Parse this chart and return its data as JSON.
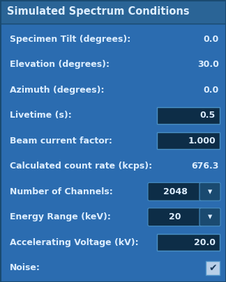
{
  "title": "Simulated Spectrum Conditions",
  "title_bg": "#2a6496",
  "body_bg": "#2b6cb0",
  "rows": [
    {
      "label": "Specimen Tilt (degrees):",
      "value": "0.0",
      "type": "plain"
    },
    {
      "label": "Elevation (degrees):",
      "value": "30.0",
      "type": "plain"
    },
    {
      "label": "Azimuth (degrees):",
      "value": "0.0",
      "type": "plain"
    },
    {
      "label": "Livetime (s):",
      "value": "0.5",
      "type": "input"
    },
    {
      "label": "Beam current factor:",
      "value": "1.000",
      "type": "input"
    },
    {
      "label": "Calculated count rate (kcps):",
      "value": "676.3",
      "type": "plain"
    },
    {
      "label": "Number of Channels:",
      "value": "2048",
      "type": "dropdown"
    },
    {
      "label": "Energy Range (keV):",
      "value": "20",
      "type": "dropdown"
    },
    {
      "label": "Accelerating Voltage (kV):",
      "value": "20.0",
      "type": "input"
    },
    {
      "label": "Noise:",
      "value": "",
      "type": "checkbox"
    }
  ],
  "label_color": "#ddeeff",
  "value_color": "#ddeeff",
  "input_bg": "#0d2d47",
  "input_border": "#4a90c4",
  "dropdown_bg": "#0d2d47",
  "dropdown_arrow_bg": "#1a4a70",
  "checkbox_bg": "#b8cfe8",
  "checkbox_border": "#5599cc",
  "checkmark_color": "#1a3a5c",
  "title_color": "#ddeeff",
  "title_fontsize": 10.5,
  "row_fontsize": 9.0
}
